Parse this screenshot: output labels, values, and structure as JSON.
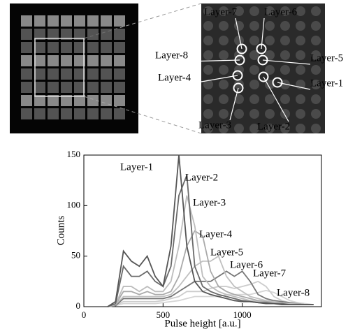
{
  "chart_data": {
    "type": "line",
    "xlabel": "Pulse height  [a.u.]",
    "ylabel": "Counts",
    "xlim": [
      0,
      1500
    ],
    "ylim": [
      0,
      150
    ],
    "xticks": [
      0,
      500,
      1000
    ],
    "yticks": [
      0,
      50,
      100,
      150
    ],
    "x": [
      150,
      200,
      250,
      300,
      350,
      400,
      450,
      500,
      550,
      600,
      650,
      700,
      750,
      800,
      850,
      900,
      950,
      1000,
      1050,
      1100,
      1150,
      1200,
      1250,
      1300,
      1350,
      1400,
      1450
    ],
    "series": [
      {
        "name": "Layer-1",
        "color": "#555555",
        "values": [
          0,
          5,
          55,
          45,
          40,
          50,
          30,
          20,
          60,
          150,
          60,
          25,
          15,
          12,
          10,
          8,
          6,
          5,
          5,
          4,
          3,
          3,
          2,
          2,
          2,
          2,
          2
        ]
      },
      {
        "name": "Layer-2",
        "color": "#6a6a6a",
        "values": [
          0,
          3,
          40,
          30,
          30,
          35,
          25,
          20,
          40,
          110,
          130,
          40,
          20,
          15,
          12,
          10,
          8,
          6,
          5,
          4,
          4,
          3,
          3,
          2,
          2,
          2,
          2
        ]
      },
      {
        "name": "Layer-3",
        "color": "#bdbdbd",
        "values": [
          0,
          2,
          20,
          20,
          15,
          20,
          15,
          15,
          25,
          60,
          110,
          80,
          30,
          20,
          15,
          12,
          10,
          8,
          6,
          5,
          4,
          4,
          3,
          3,
          2,
          2,
          2
        ]
      },
      {
        "name": "Layer-4",
        "color": "#aaaaaa",
        "values": [
          0,
          2,
          15,
          15,
          12,
          15,
          12,
          12,
          15,
          30,
          60,
          75,
          70,
          35,
          20,
          15,
          12,
          10,
          8,
          6,
          5,
          4,
          4,
          3,
          3,
          2,
          2
        ]
      },
      {
        "name": "Layer-5",
        "color": "#c0c0c0",
        "values": [
          0,
          2,
          10,
          10,
          10,
          10,
          10,
          10,
          12,
          20,
          30,
          40,
          45,
          45,
          50,
          30,
          20,
          15,
          10,
          8,
          6,
          5,
          4,
          3,
          3,
          2,
          2
        ]
      },
      {
        "name": "Layer-6",
        "color": "#777777",
        "values": [
          0,
          1,
          8,
          8,
          8,
          8,
          8,
          8,
          10,
          15,
          20,
          25,
          25,
          25,
          30,
          35,
          30,
          35,
          25,
          12,
          8,
          6,
          5,
          4,
          3,
          2,
          2
        ]
      },
      {
        "name": "Layer-7",
        "color": "#cccccc",
        "values": [
          0,
          1,
          5,
          5,
          5,
          5,
          5,
          6,
          8,
          10,
          15,
          15,
          15,
          18,
          20,
          20,
          18,
          20,
          22,
          25,
          20,
          10,
          6,
          4,
          3,
          2,
          2
        ]
      },
      {
        "name": "Layer-8",
        "color": "#d5d5d5",
        "values": [
          0,
          1,
          3,
          3,
          3,
          3,
          3,
          4,
          5,
          6,
          8,
          10,
          10,
          10,
          10,
          12,
          12,
          12,
          12,
          14,
          16,
          14,
          10,
          6,
          4,
          3,
          2
        ]
      }
    ]
  }
}
